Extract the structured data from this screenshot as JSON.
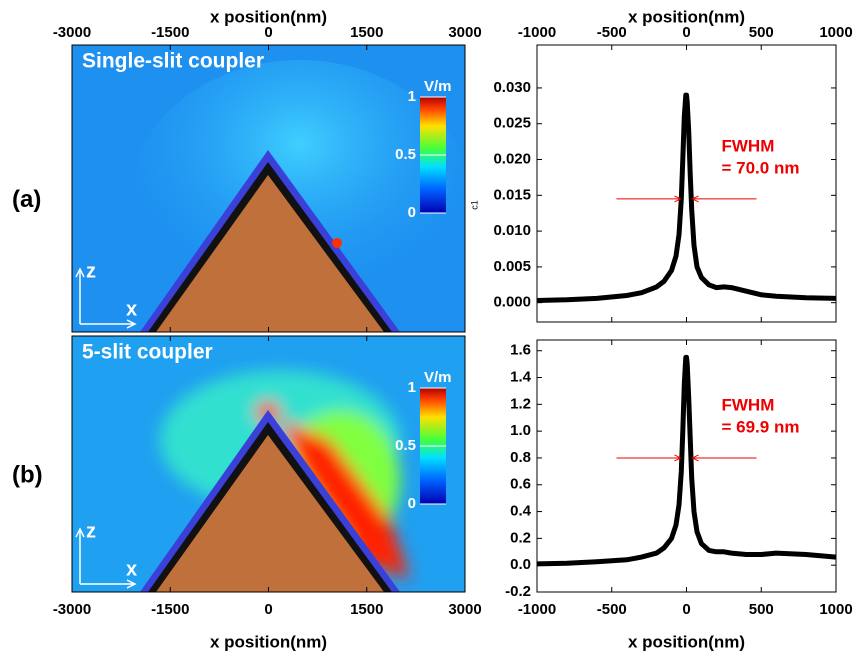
{
  "chart_data": [
    {
      "type": "map",
      "panel_label": "(a)",
      "label": "Single-slit coupler",
      "xlabel": "x position(nm)",
      "xaxis": "top",
      "xlim": [
        -3000,
        3000
      ],
      "xticks": [
        -3000,
        -1500,
        0,
        1500,
        3000
      ],
      "colorbar_label": "V/m",
      "clim": [
        0,
        1
      ],
      "cticks": [
        0,
        0.5,
        1
      ],
      "axis_labels": [
        "z",
        "x"
      ]
    },
    {
      "type": "line",
      "xlabel": "x position(nm)",
      "xaxis": "top",
      "ylabel": "c1",
      "color": "#000000",
      "xlim": [
        -1000,
        1000
      ],
      "xticks": [
        -1000,
        -500,
        0,
        500,
        1000
      ],
      "ylim": [
        -0.0027,
        0.036
      ],
      "yticks": [
        {
          "value": 0,
          "label": "0.000"
        },
        0.005,
        {
          "value": 0.01,
          "label": "0.010"
        },
        0.015,
        {
          "value": 0.02,
          "label": "0.020"
        },
        0.025,
        {
          "value": 0.03,
          "label": "0.030"
        }
      ],
      "annotation": [
        "FWHM",
        "= 70.0 nm"
      ],
      "annotation_y": 0.0145,
      "x": [
        -1000,
        -800,
        -600,
        -400,
        -300,
        -200,
        -150,
        -100,
        -70,
        -50,
        -35,
        -25,
        -15,
        -5,
        0,
        5,
        15,
        25,
        35,
        50,
        70,
        100,
        150,
        200,
        250,
        300,
        400,
        500,
        600,
        800,
        1000
      ],
      "values": [
        0.0003,
        0.0004,
        0.0006,
        0.001,
        0.0014,
        0.0022,
        0.003,
        0.0045,
        0.0065,
        0.0095,
        0.0145,
        0.02,
        0.026,
        0.029,
        0.029,
        0.028,
        0.024,
        0.018,
        0.013,
        0.008,
        0.005,
        0.0035,
        0.0025,
        0.0021,
        0.0022,
        0.0021,
        0.0016,
        0.0011,
        0.0009,
        0.0007,
        0.0006
      ]
    },
    {
      "type": "map",
      "panel_label": "(b)",
      "label": "5-slit coupler",
      "xlabel": "x position(nm)",
      "xaxis": "bottom",
      "xlim": [
        -3000,
        3000
      ],
      "xticks": [
        -3000,
        -1500,
        0,
        1500,
        3000
      ],
      "colorbar_label": "V/m",
      "clim": [
        0,
        1
      ],
      "cticks": [
        0,
        0.5,
        1
      ],
      "axis_labels": [
        "z",
        "x"
      ]
    },
    {
      "type": "line",
      "xlabel": "x position(nm)",
      "xaxis": "bottom",
      "color": "#000000",
      "xlim": [
        -1000,
        1000
      ],
      "xticks": [
        -1000,
        -500,
        0,
        500,
        1000
      ],
      "ylim": [
        -0.2,
        1.68
      ],
      "yticks": [
        -0.2,
        {
          "value": 0,
          "label": "0.0"
        },
        0.2,
        0.4,
        0.6,
        0.8,
        {
          "value": 1,
          "label": "1.0"
        },
        1.2,
        1.4,
        1.6
      ],
      "annotation": [
        "FWHM",
        "= 69.9 nm"
      ],
      "annotation_y": 0.8,
      "x": [
        -1000,
        -800,
        -600,
        -400,
        -300,
        -200,
        -150,
        -100,
        -70,
        -50,
        -35,
        -25,
        -15,
        -5,
        0,
        5,
        15,
        25,
        35,
        50,
        70,
        100,
        150,
        200,
        250,
        300,
        400,
        500,
        600,
        800,
        1000
      ],
      "values": [
        0.01,
        0.015,
        0.025,
        0.04,
        0.06,
        0.09,
        0.13,
        0.2,
        0.3,
        0.45,
        0.7,
        1.0,
        1.35,
        1.55,
        1.55,
        1.5,
        1.25,
        0.95,
        0.65,
        0.4,
        0.25,
        0.16,
        0.11,
        0.1,
        0.1,
        0.09,
        0.08,
        0.08,
        0.09,
        0.08,
        0.06
      ]
    }
  ]
}
